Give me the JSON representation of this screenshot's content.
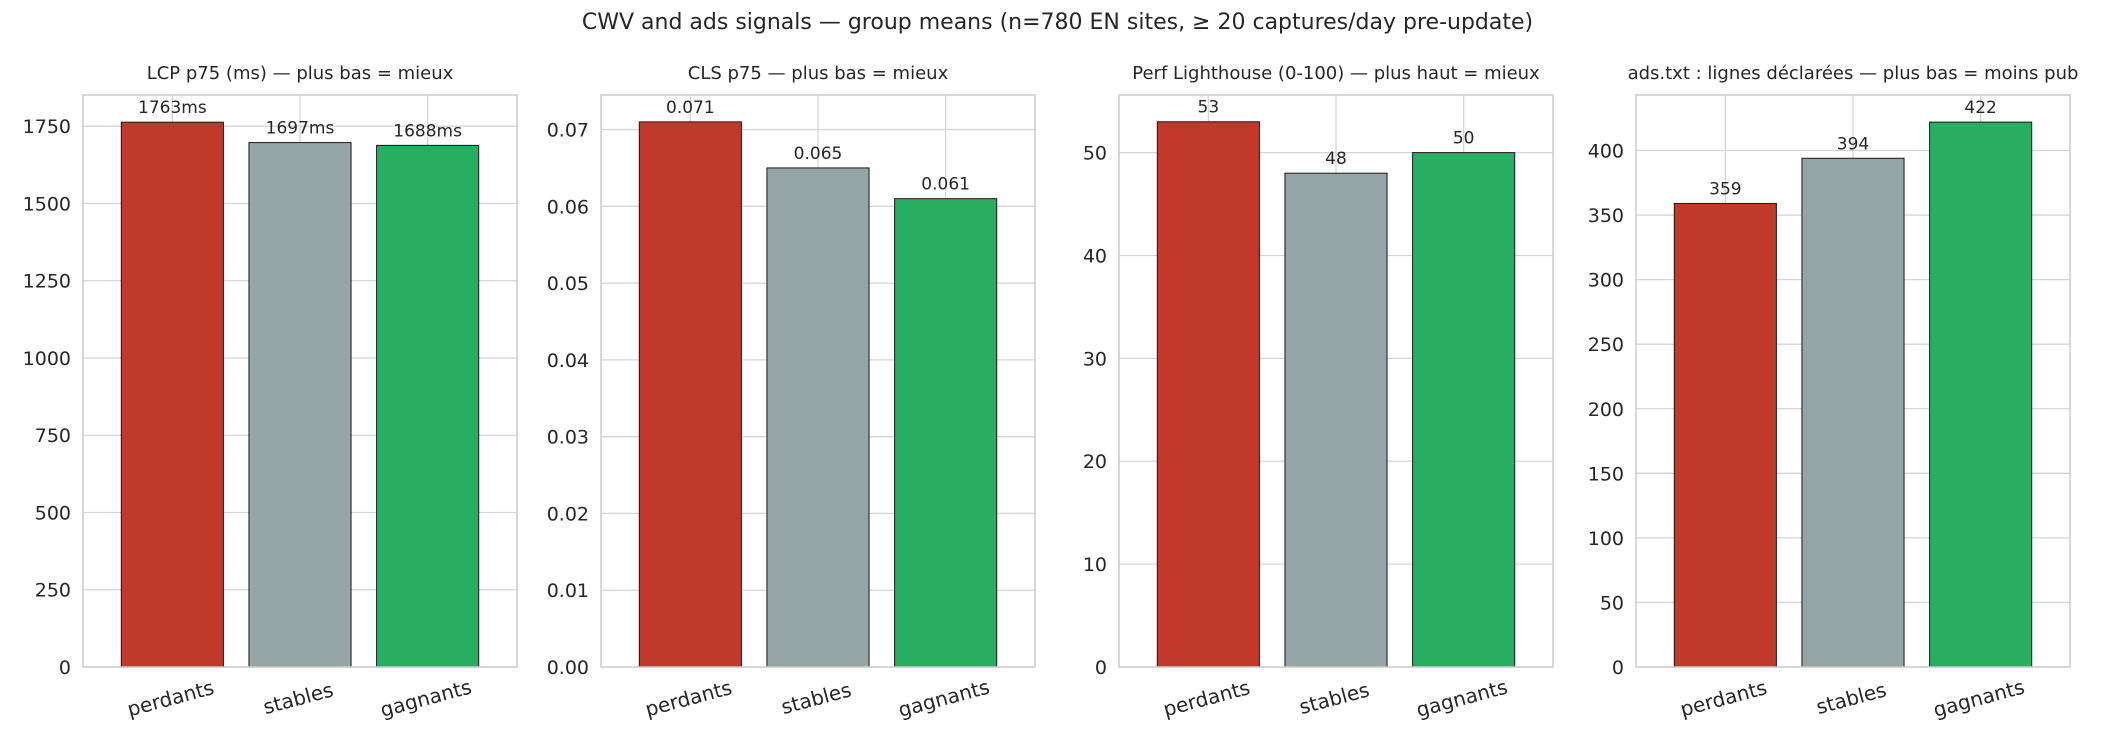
{
  "suptitle": "CWV and ads signals — group means (n=780 EN sites, ≥ 20 captures/day pre-update)",
  "colors": {
    "perdants": "#c0392b",
    "stables": "#95a5a6",
    "gagnants": "#27ae60",
    "grid": "#d5d5d5",
    "axis": "#cccccc",
    "text": "#262626"
  },
  "chart_data": [
    {
      "type": "bar",
      "title": "LCP p75 (ms) — plus bas = mieux",
      "categories": [
        "perdants",
        "stables",
        "gagnants"
      ],
      "values": [
        1763,
        1697,
        1688
      ],
      "labels": [
        "1763ms",
        "1697ms",
        "1688ms"
      ],
      "ylim": [
        0,
        1851
      ],
      "yticks": [
        0,
        250,
        500,
        750,
        1000,
        1250,
        1500,
        1750
      ],
      "ytick_labels": [
        "0",
        "250",
        "500",
        "750",
        "1000",
        "1250",
        "1500",
        "1750"
      ],
      "grid": true
    },
    {
      "type": "bar",
      "title": "CLS p75 — plus bas = mieux",
      "categories": [
        "perdants",
        "stables",
        "gagnants"
      ],
      "values": [
        0.071,
        0.065,
        0.061
      ],
      "labels": [
        "0.071",
        "0.065",
        "0.061"
      ],
      "ylim": [
        0,
        0.0745
      ],
      "yticks": [
        0,
        0.01,
        0.02,
        0.03,
        0.04,
        0.05,
        0.06,
        0.07
      ],
      "ytick_labels": [
        "0.00",
        "0.01",
        "0.02",
        "0.03",
        "0.04",
        "0.05",
        "0.06",
        "0.07"
      ],
      "grid": true
    },
    {
      "type": "bar",
      "title": "Perf Lighthouse (0-100) — plus haut = mieux",
      "categories": [
        "perdants",
        "stables",
        "gagnants"
      ],
      "values": [
        53,
        48,
        50
      ],
      "labels": [
        "53",
        "48",
        "50"
      ],
      "ylim": [
        0,
        55.6
      ],
      "yticks": [
        0,
        10,
        20,
        30,
        40,
        50
      ],
      "ytick_labels": [
        "0",
        "10",
        "20",
        "30",
        "40",
        "50"
      ],
      "grid": true
    },
    {
      "type": "bar",
      "title": "ads.txt : lignes déclarées — plus bas = moins pub",
      "categories": [
        "perdants",
        "stables",
        "gagnants"
      ],
      "values": [
        359,
        394,
        422
      ],
      "labels": [
        "359",
        "394",
        "422"
      ],
      "ylim": [
        0,
        443
      ],
      "yticks": [
        0,
        50,
        100,
        150,
        200,
        250,
        300,
        350,
        400
      ],
      "ytick_labels": [
        "0",
        "50",
        "100",
        "150",
        "200",
        "250",
        "300",
        "350",
        "400"
      ],
      "grid": true
    }
  ]
}
